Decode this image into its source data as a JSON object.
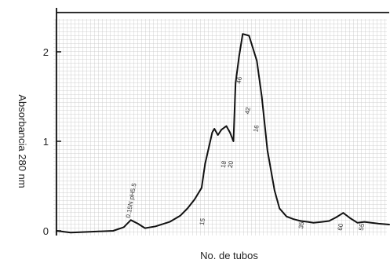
{
  "chart_data": {
    "type": "line",
    "title": "",
    "xlabel": "No. de tubos",
    "ylabel": "Absorbancia 280 nm",
    "ylim": [
      0,
      2.4
    ],
    "yticks": [
      0,
      1,
      2
    ],
    "grid": true,
    "colors": {
      "line": "#111111",
      "grid": "#c4c4c4",
      "axis": "#111111"
    },
    "series": [
      {
        "x": [
          0,
          2,
          5,
          8,
          9.5,
          10.5,
          11.5,
          12.5,
          14,
          16,
          17.5,
          18.5,
          19.5,
          20.5,
          21,
          22,
          22.3,
          22.8,
          23.3,
          24,
          24.5,
          25,
          25.3,
          25.8,
          26.3,
          27.2,
          28.3,
          29,
          29.8,
          30.8,
          31.5,
          32.5,
          33.5,
          34.5,
          35.5,
          36.3,
          37.5,
          38.5,
          39.5,
          40.5,
          41.5,
          42.5,
          43.5,
          44.5,
          45.5,
          47
        ],
        "y": [
          0.0,
          -0.02,
          -0.01,
          0.0,
          0.04,
          0.12,
          0.08,
          0.03,
          0.05,
          0.1,
          0.17,
          0.25,
          0.35,
          0.48,
          0.75,
          1.1,
          1.14,
          1.07,
          1.13,
          1.17,
          1.1,
          1.0,
          1.65,
          1.95,
          2.2,
          2.18,
          1.9,
          1.5,
          0.9,
          0.45,
          0.25,
          0.16,
          0.13,
          0.11,
          0.1,
          0.09,
          0.1,
          0.11,
          0.15,
          0.2,
          0.14,
          0.09,
          0.1,
          0.09,
          0.08,
          0.07
        ]
      }
    ],
    "annotations": [
      {
        "text": "0.15N pH5.5",
        "x": 10.4,
        "y": 0.14
      },
      {
        "text": "15",
        "x": 20.8,
        "y": 0.06
      },
      {
        "text": "18",
        "x": 23.8,
        "y": 0.7
      },
      {
        "text": "20",
        "x": 24.8,
        "y": 0.7
      },
      {
        "text": "46",
        "x": 26.0,
        "y": 1.64
      },
      {
        "text": "42",
        "x": 27.2,
        "y": 1.3
      },
      {
        "text": "16",
        "x": 28.4,
        "y": 1.1
      },
      {
        "text": "35",
        "x": 34.8,
        "y": 0.02
      },
      {
        "text": "60",
        "x": 40.3,
        "y": 0.0
      },
      {
        "text": "55",
        "x": 43.3,
        "y": 0.0
      }
    ]
  }
}
